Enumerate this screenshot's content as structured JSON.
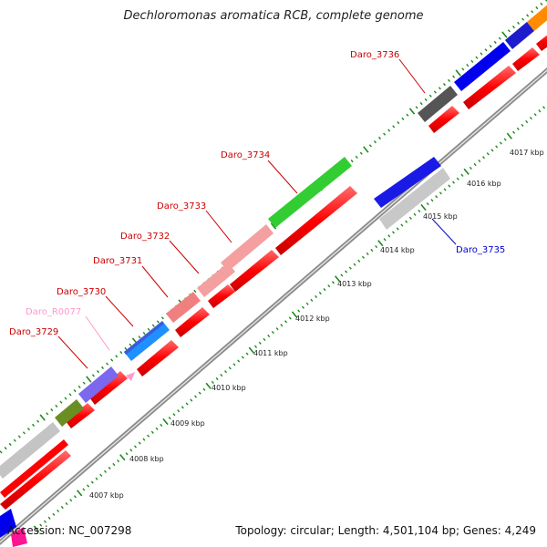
{
  "title": "Dechloromonas aromatica RCB, complete genome",
  "footer": {
    "accession": "Accession: NC_007298",
    "topology": "Topology: circular; Length: 4,501,104 bp; Genes: 4,249"
  },
  "colors": {
    "backbone": "#9a9a9a",
    "minor_tick": "#1a8a1a",
    "label_red": "#cc0000",
    "label_blue": "#0000cc",
    "label_pink": "#ff99cc"
  },
  "ticks": [
    {
      "label": "4007 kbp"
    },
    {
      "label": "4008 kbp"
    },
    {
      "label": "4009 kbp"
    },
    {
      "label": "4010 kbp"
    },
    {
      "label": "4011 kbp"
    },
    {
      "label": "4012 kbp"
    },
    {
      "label": "4013 kbp"
    },
    {
      "label": "4014 kbp"
    },
    {
      "label": "4015 kbp"
    },
    {
      "label": "4016 kbp"
    },
    {
      "label": "4017 kbp"
    }
  ],
  "gene_labels": [
    {
      "name": "Daro_3729",
      "color": "#cc0000"
    },
    {
      "name": "Daro_R0077",
      "color": "#ff99cc"
    },
    {
      "name": "Daro_3730",
      "color": "#cc0000"
    },
    {
      "name": "Daro_3731",
      "color": "#cc0000"
    },
    {
      "name": "Daro_3732",
      "color": "#cc0000"
    },
    {
      "name": "Daro_3733",
      "color": "#cc0000"
    },
    {
      "name": "Daro_3734",
      "color": "#cc0000"
    },
    {
      "name": "Daro_3736",
      "color": "#cc0000"
    },
    {
      "name": "Daro_3735",
      "color": "#0000cc"
    }
  ]
}
